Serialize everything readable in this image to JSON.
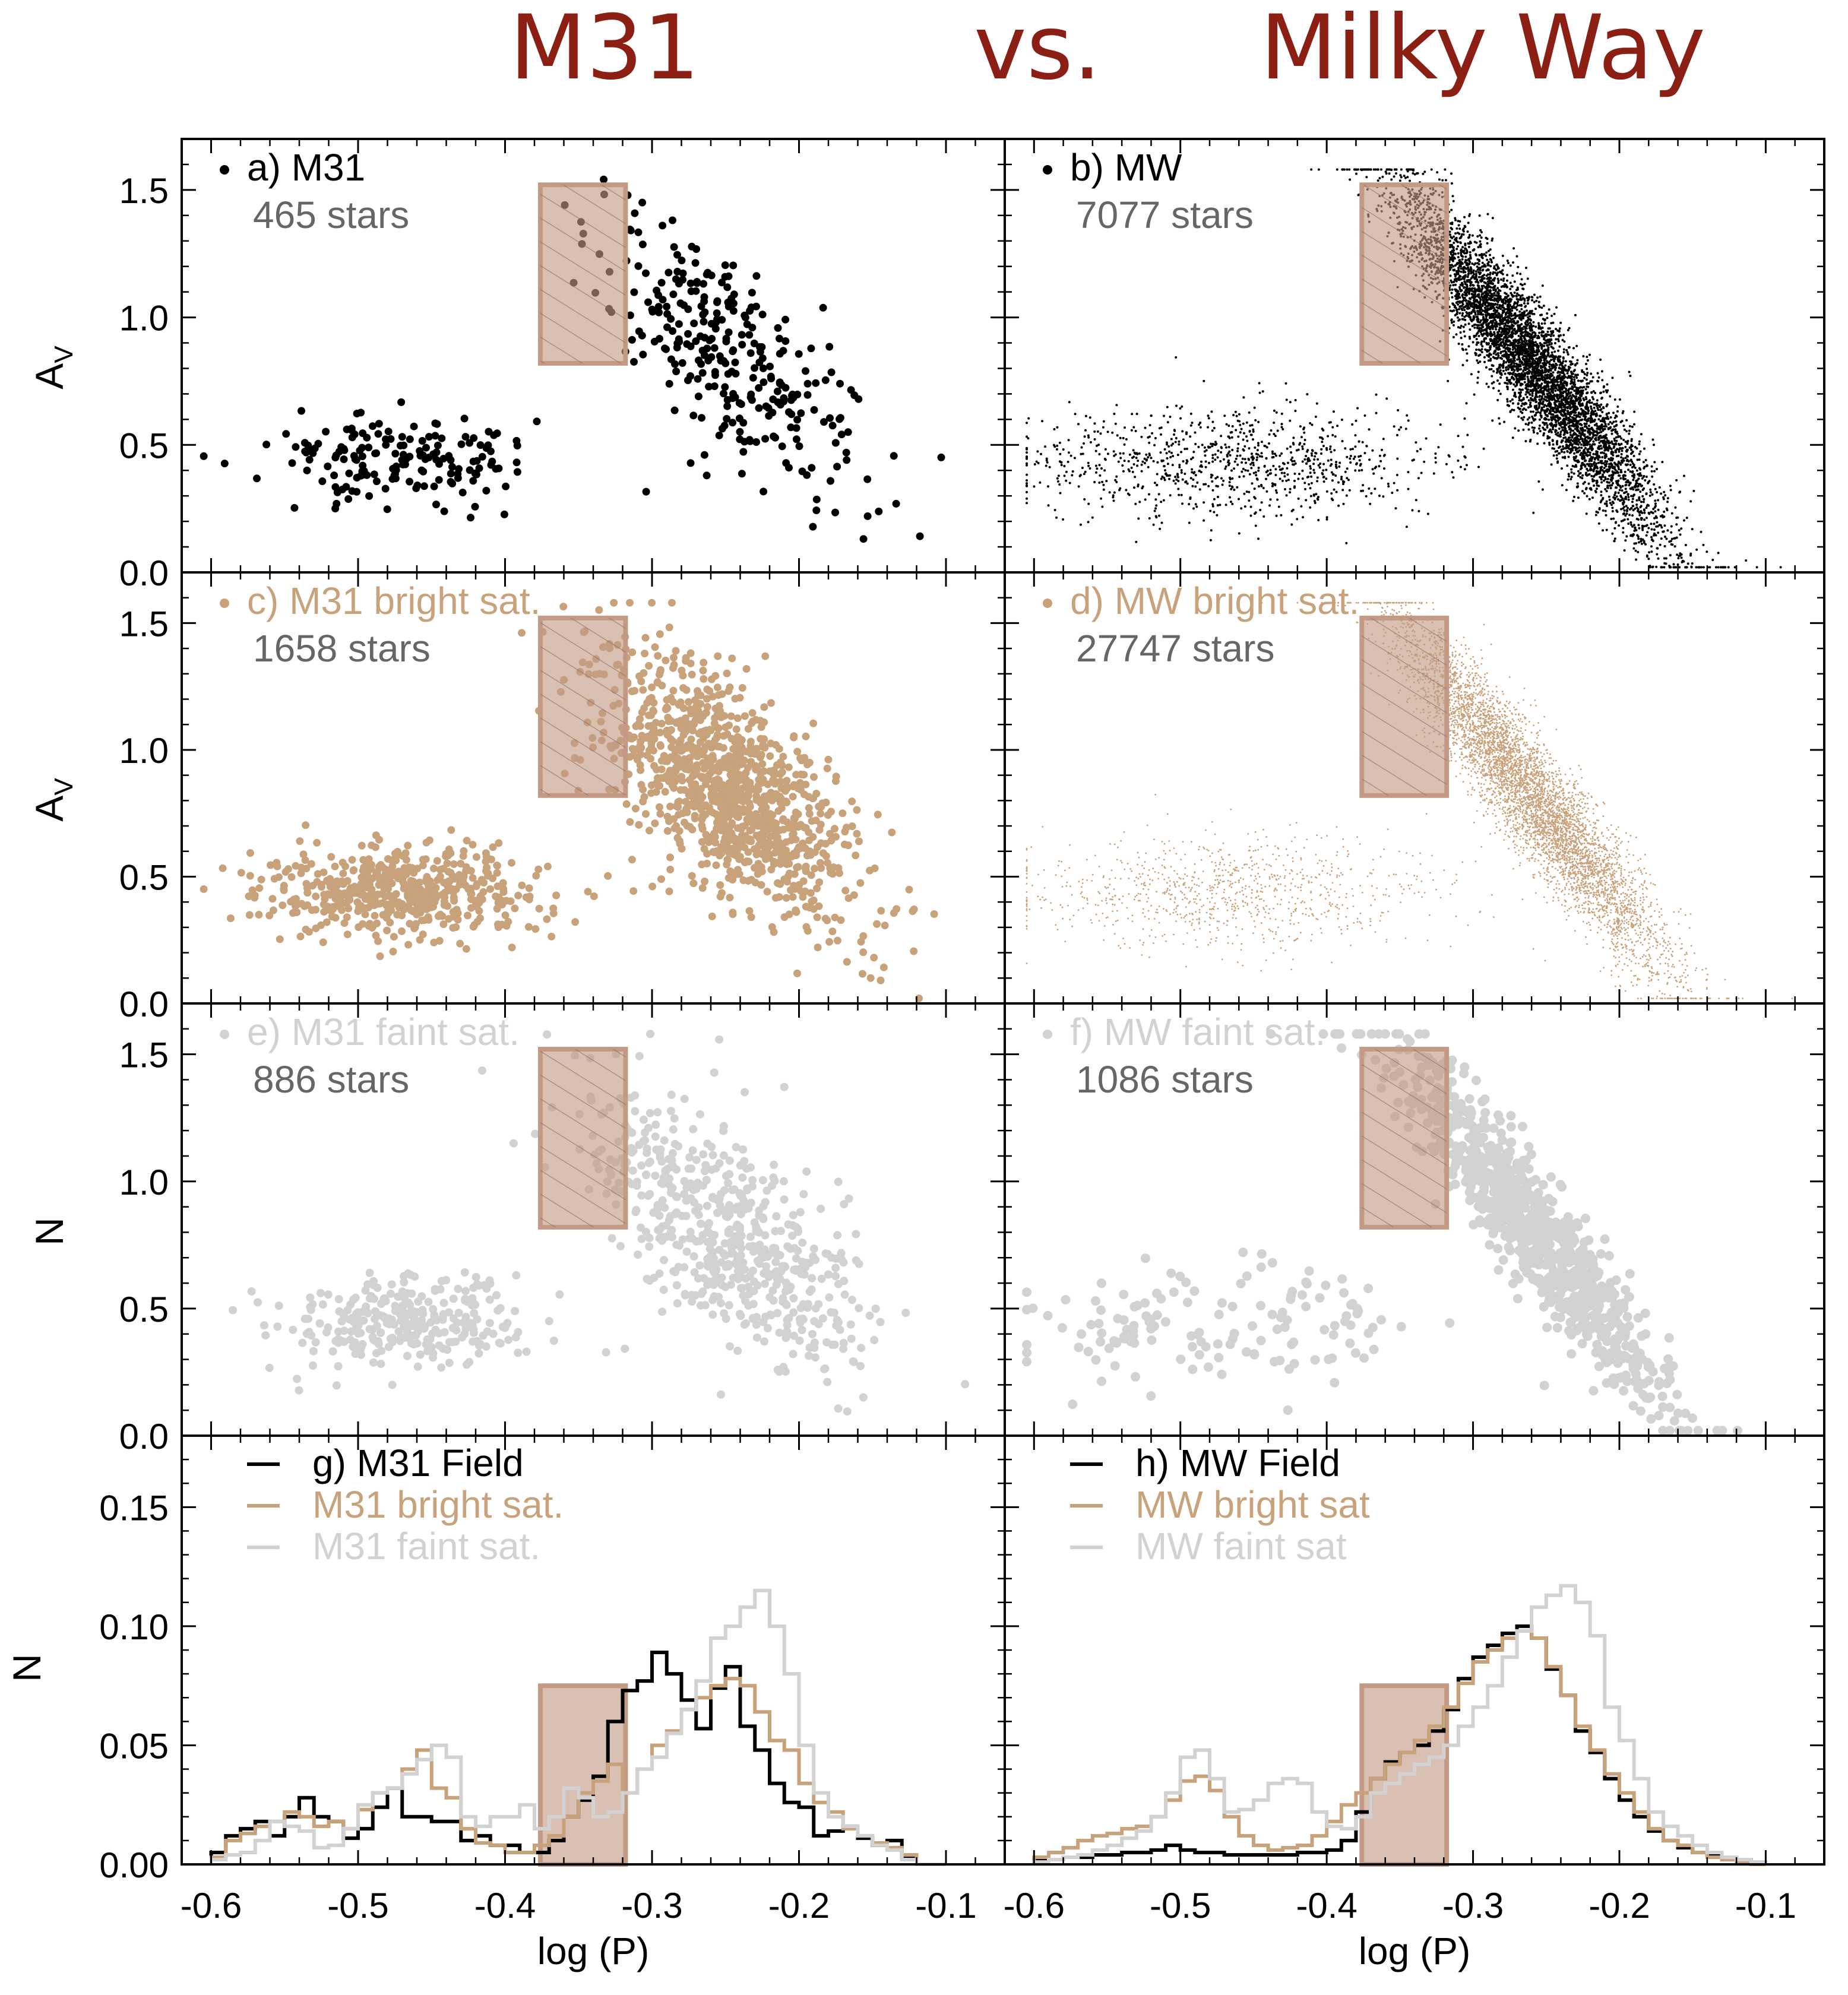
{
  "header": {
    "left": "M31",
    "middle": "vs.",
    "right": "Milky Way"
  },
  "colors": {
    "field": "#000000",
    "bright": "#c8a27a",
    "faint": "#d2d2d2",
    "gap_box": "#c49a85",
    "gap_hatch": "#8a6a5a",
    "title_red": "#8b1f14",
    "count_gray": "#666666"
  },
  "axes": {
    "x_label": "log (P)",
    "x_ticks": [
      "-0.6",
      "-0.5",
      "-0.4",
      "-0.3",
      "-0.2",
      "-0.1"
    ],
    "av_label": "A",
    "av_label_sub": "V",
    "n_label": "N",
    "y_ticks_scatter": [
      "0.0",
      "0.5",
      "1.0",
      "1.5"
    ],
    "y_ticks_hist": [
      "0.00",
      "0.05",
      "0.10",
      "0.15"
    ]
  },
  "chart_data": [
    {
      "id": "a",
      "type": "scatter",
      "population": "field",
      "galaxy": "M31",
      "label": "a) M31",
      "count_text": "465 stars",
      "xlim": [
        -0.62,
        -0.06
      ],
      "ylim": [
        0,
        1.7
      ],
      "highlight_x": [
        -0.376,
        -0.318
      ],
      "highlight_y": [
        0.82,
        1.52
      ]
    },
    {
      "id": "b",
      "type": "scatter",
      "population": "field",
      "galaxy": "MW",
      "label": "b) MW",
      "count_text": "7077 stars",
      "xlim": [
        -0.62,
        -0.06
      ],
      "ylim": [
        0,
        1.7
      ],
      "highlight_x": [
        -0.376,
        -0.318
      ],
      "highlight_y": [
        0.82,
        1.52
      ]
    },
    {
      "id": "c",
      "type": "scatter",
      "population": "bright",
      "galaxy": "M31",
      "label": "c) M31 bright sat.",
      "count_text": "1658 stars",
      "xlim": [
        -0.62,
        -0.06
      ],
      "ylim": [
        0,
        1.7
      ],
      "highlight_x": [
        -0.376,
        -0.318
      ],
      "highlight_y": [
        0.82,
        1.52
      ]
    },
    {
      "id": "d",
      "type": "scatter",
      "population": "bright",
      "galaxy": "MW",
      "label": "d) MW bright sat.",
      "count_text": "27747 stars",
      "xlim": [
        -0.62,
        -0.06
      ],
      "ylim": [
        0,
        1.7
      ],
      "highlight_x": [
        -0.376,
        -0.318
      ],
      "highlight_y": [
        0.82,
        1.52
      ]
    },
    {
      "id": "e",
      "type": "scatter",
      "population": "faint",
      "galaxy": "M31",
      "label": "e) M31 faint sat.",
      "count_text": "886 stars",
      "xlim": [
        -0.62,
        -0.06
      ],
      "ylim": [
        0,
        1.7
      ],
      "highlight_x": [
        -0.376,
        -0.318
      ],
      "highlight_y": [
        0.82,
        1.52
      ]
    },
    {
      "id": "f",
      "type": "scatter",
      "population": "faint",
      "galaxy": "MW",
      "label": "f) MW faint sat.",
      "count_text": "1086 stars",
      "xlim": [
        -0.62,
        -0.06
      ],
      "ylim": [
        0,
        1.7
      ],
      "highlight_x": [
        -0.376,
        -0.318
      ],
      "highlight_y": [
        0.82,
        1.52
      ]
    },
    {
      "id": "g",
      "type": "histogram",
      "label": "g) M31 Field",
      "xlim": [
        -0.62,
        -0.06
      ],
      "ylim": [
        0,
        0.18
      ],
      "highlight_x": [
        -0.376,
        -0.318
      ],
      "highlight_y": [
        0,
        0.075
      ],
      "bin_start": -0.6,
      "bin_width": 0.01,
      "legend": [
        "g) M31 Field",
        "M31 bright sat.",
        "M31 faint sat."
      ],
      "series": [
        {
          "name": "g) M31 Field",
          "population": "field",
          "values": [
            0.005,
            0.012,
            0.015,
            0.018,
            0.012,
            0.02,
            0.028,
            0.02,
            0.018,
            0.011,
            0.015,
            0.024,
            0.032,
            0.02,
            0.02,
            0.018,
            0.018,
            0.01,
            0.012,
            0.008,
            0.008,
            0.005,
            0.005,
            0.01,
            0.02,
            0.027,
            0.037,
            0.06,
            0.073,
            0.077,
            0.089,
            0.08,
            0.069,
            0.057,
            0.074,
            0.083,
            0.058,
            0.048,
            0.034,
            0.026,
            0.024,
            0.012,
            0.014,
            0.016,
            0.011,
            0.008,
            0.01,
            0.003,
            0.0,
            0.0
          ]
        },
        {
          "name": "M31 bright sat.",
          "population": "bright",
          "values": [
            0.003,
            0.01,
            0.013,
            0.016,
            0.018,
            0.022,
            0.02,
            0.016,
            0.018,
            0.015,
            0.023,
            0.03,
            0.032,
            0.04,
            0.048,
            0.032,
            0.028,
            0.015,
            0.009,
            0.008,
            0.005,
            0.005,
            0.008,
            0.012,
            0.02,
            0.03,
            0.035,
            0.042,
            0.03,
            0.04,
            0.05,
            0.056,
            0.065,
            0.07,
            0.075,
            0.078,
            0.075,
            0.064,
            0.052,
            0.048,
            0.034,
            0.026,
            0.022,
            0.015,
            0.012,
            0.009,
            0.007,
            0.004,
            0.0,
            0.0
          ]
        },
        {
          "name": "M31 faint sat.",
          "population": "faint",
          "values": [
            0.002,
            0.004,
            0.005,
            0.01,
            0.018,
            0.016,
            0.014,
            0.007,
            0.008,
            0.015,
            0.025,
            0.03,
            0.032,
            0.038,
            0.044,
            0.05,
            0.045,
            0.02,
            0.016,
            0.02,
            0.02,
            0.025,
            0.015,
            0.02,
            0.032,
            0.028,
            0.02,
            0.022,
            0.03,
            0.04,
            0.045,
            0.055,
            0.065,
            0.077,
            0.095,
            0.1,
            0.108,
            0.115,
            0.1,
            0.08,
            0.05,
            0.03,
            0.02,
            0.016,
            0.012,
            0.008,
            0.006,
            0.002,
            0.0,
            0.0
          ]
        }
      ]
    },
    {
      "id": "h",
      "type": "histogram",
      "label": "h) MW Field",
      "xlim": [
        -0.62,
        -0.06
      ],
      "ylim": [
        0,
        0.18
      ],
      "highlight_x": [
        -0.376,
        -0.318
      ],
      "highlight_y": [
        0,
        0.075
      ],
      "bin_start": -0.6,
      "bin_width": 0.01,
      "legend": [
        "h) MW Field",
        "MW bright sat",
        "MW faint sat"
      ],
      "series": [
        {
          "name": "h) MW Field",
          "population": "field",
          "values": [
            0.002,
            0.002,
            0.003,
            0.003,
            0.004,
            0.004,
            0.005,
            0.005,
            0.006,
            0.008,
            0.006,
            0.005,
            0.005,
            0.004,
            0.004,
            0.004,
            0.004,
            0.004,
            0.005,
            0.005,
            0.006,
            0.01,
            0.022,
            0.036,
            0.043,
            0.047,
            0.05,
            0.056,
            0.065,
            0.078,
            0.087,
            0.092,
            0.097,
            0.1,
            0.095,
            0.082,
            0.071,
            0.056,
            0.047,
            0.036,
            0.027,
            0.02,
            0.014,
            0.01,
            0.007,
            0.005,
            0.004,
            0.003,
            0.002,
            0.001
          ]
        },
        {
          "name": "MW bright sat",
          "population": "bright",
          "values": [
            0.003,
            0.005,
            0.007,
            0.01,
            0.012,
            0.013,
            0.015,
            0.016,
            0.02,
            0.027,
            0.035,
            0.037,
            0.031,
            0.02,
            0.012,
            0.008,
            0.006,
            0.007,
            0.008,
            0.012,
            0.018,
            0.025,
            0.03,
            0.036,
            0.042,
            0.047,
            0.052,
            0.058,
            0.066,
            0.076,
            0.085,
            0.09,
            0.095,
            0.098,
            0.095,
            0.083,
            0.071,
            0.058,
            0.048,
            0.038,
            0.03,
            0.022,
            0.015,
            0.01,
            0.008,
            0.005,
            0.003,
            0.002,
            0.001,
            0.0
          ]
        },
        {
          "name": "MW faint sat",
          "population": "faint",
          "values": [
            0.001,
            0.002,
            0.003,
            0.004,
            0.006,
            0.008,
            0.011,
            0.014,
            0.02,
            0.03,
            0.045,
            0.048,
            0.036,
            0.022,
            0.023,
            0.027,
            0.034,
            0.036,
            0.034,
            0.022,
            0.016,
            0.015,
            0.02,
            0.03,
            0.034,
            0.038,
            0.042,
            0.045,
            0.05,
            0.058,
            0.066,
            0.075,
            0.087,
            0.098,
            0.108,
            0.113,
            0.117,
            0.11,
            0.096,
            0.066,
            0.052,
            0.036,
            0.022,
            0.016,
            0.012,
            0.008,
            0.005,
            0.003,
            0.002,
            0.001
          ]
        }
      ]
    }
  ]
}
